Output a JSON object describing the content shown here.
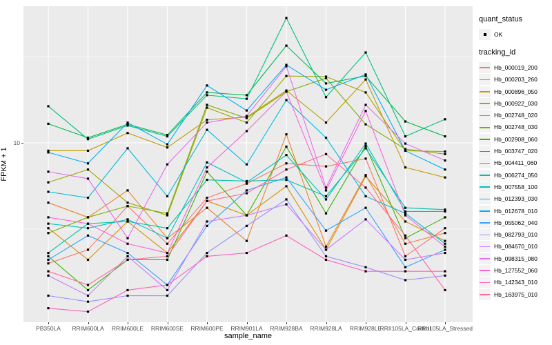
{
  "axes": {
    "y_title": "FPKM + 1",
    "x_title": "sample_name",
    "y_tick_label": "10"
  },
  "legend": {
    "quant_title": "quant_status",
    "quant_item_label": "OK",
    "tracking_title": "tracking_id"
  },
  "colors": {
    "panel_bg": "#EBEBEB",
    "grid": "#FFFFFF",
    "tick_text": "#4D4D4D",
    "point": "#000000",
    "legend_key_bg": "#F2F2F2"
  },
  "chart_data": {
    "type": "line",
    "title": "",
    "xlabel": "sample_name",
    "ylabel": "FPKM + 1",
    "yscale": "log10",
    "y_major_breaks": [
      10
    ],
    "y_minor_breaks": [
      3.16,
      31.6
    ],
    "ylim": [
      1,
      70
    ],
    "grid": true,
    "legend_position": "right",
    "point_shape": "filled-square",
    "categories": [
      "PB350LA",
      "RRIM600LA",
      "RRIM600LE",
      "RRIM600SE",
      "RRIM600PE",
      "RRIM901LA",
      "RRIM928BA",
      "RRIM928LA",
      "RRIM928LE",
      "RRII105LA_Control",
      "RRII105LA_Stressed"
    ],
    "series": [
      {
        "name": "Hb_000019_200",
        "color": "#F8766D",
        "values": [
          2.0,
          2.4,
          4.3,
          2.6,
          4.8,
          5.8,
          7.6,
          7.3,
          8.1,
          2.2,
          3.2
        ]
      },
      {
        "name": "Hb_000203_260",
        "color": "#EA8331",
        "values": [
          4.5,
          3.7,
          5.3,
          2.8,
          4.2,
          2.7,
          11.2,
          2.5,
          6.5,
          2.6,
          3.0
        ]
      },
      {
        "name": "Hb_000896_050",
        "color": "#D89000",
        "values": [
          3.2,
          2.1,
          3.5,
          2.3,
          4.6,
          3.8,
          5.6,
          2.4,
          6.4,
          3.5,
          2.7
        ]
      },
      {
        "name": "Hb_000922_030",
        "color": "#C09B00",
        "values": [
          9.0,
          9.0,
          11.4,
          9.4,
          13.6,
          14.1,
          20.1,
          13.1,
          23.3,
          7.2,
          6.3
        ]
      },
      {
        "name": "Hb_002748_020",
        "color": "#A3A500",
        "values": [
          5.9,
          7.0,
          4.5,
          3.8,
          16.0,
          13.1,
          24.4,
          24.2,
          19.6,
          9.0,
          8.9
        ]
      },
      {
        "name": "Hb_002748_030",
        "color": "#7CAE00",
        "values": [
          3.0,
          3.7,
          4.3,
          3.9,
          16.6,
          13.9,
          19.8,
          23.7,
          12.8,
          9.2,
          8.6
        ]
      },
      {
        "name": "Hb_002908_060",
        "color": "#39B600",
        "values": [
          2.2,
          1.4,
          2.1,
          2.1,
          6.8,
          3.8,
          9.5,
          3.9,
          9.6,
          2.8,
          3.7
        ]
      },
      {
        "name": "Hb_003747_020",
        "color": "#00BB4E",
        "values": [
          12.9,
          10.7,
          12.8,
          11.1,
          19.6,
          18.9,
          36.6,
          22.1,
          24.4,
          13.3,
          10.9
        ]
      },
      {
        "name": "Hb_004411_060",
        "color": "#00BF7D",
        "values": [
          16.3,
          10.5,
          12.6,
          10.9,
          18.9,
          18.0,
          52.9,
          18.4,
          33.4,
          10.9,
          13.7
        ]
      },
      {
        "name": "Hb_006274_050",
        "color": "#00C1A3",
        "values": [
          2.3,
          3.4,
          3.5,
          3.2,
          6.1,
          6.0,
          6.1,
          4.9,
          9.3,
          4.2,
          4.1
        ]
      },
      {
        "name": "Hb_007558_100",
        "color": "#00BFC4",
        "values": [
          3.4,
          3.2,
          3.6,
          2.8,
          7.7,
          5.9,
          8.5,
          4.7,
          9.9,
          4.0,
          4.0
        ]
      },
      {
        "name": "Hb_012393_030",
        "color": "#00BAE0",
        "values": [
          5.2,
          4.8,
          9.3,
          4.9,
          11.9,
          7.5,
          17.7,
          10.7,
          4.9,
          3.9,
          2.6
        ]
      },
      {
        "name": "Hb_012678_010",
        "color": "#00B0F6",
        "values": [
          8.8,
          7.6,
          13.1,
          9.8,
          21.5,
          15.4,
          28.3,
          20.3,
          24.9,
          9.0,
          7.0
        ]
      },
      {
        "name": "Hb_055062_040",
        "color": "#35A2FF",
        "values": [
          2.1,
          2.9,
          2.3,
          1.5,
          3.3,
          5.3,
          6.3,
          3.1,
          4.2,
          1.9,
          2.4
        ]
      },
      {
        "name": "Hb_082793_010",
        "color": "#9590FF",
        "values": [
          1.3,
          1.2,
          1.3,
          1.3,
          2.3,
          3.3,
          4.7,
          2.2,
          1.9,
          1.6,
          1.7
        ]
      },
      {
        "name": "Hb_084670_010",
        "color": "#C77CFF",
        "values": [
          1.7,
          1.3,
          2.2,
          1.4,
          3.5,
          3.8,
          4.4,
          2.4,
          3.6,
          2.1,
          2.3
        ]
      },
      {
        "name": "Hb_098315_080",
        "color": "#E76BF3",
        "values": [
          6.8,
          6.2,
          2.8,
          7.5,
          13.1,
          14.3,
          27.8,
          5.5,
          16.6,
          9.9,
          7.9
        ]
      },
      {
        "name": "Hb_127552_060",
        "color": "#FA62DB",
        "values": [
          3.7,
          3.4,
          2.6,
          2.3,
          7.2,
          11.7,
          19.8,
          5.3,
          15.3,
          3.8,
          2.5
        ]
      },
      {
        "name": "Hb_142343_010",
        "color": "#FF62BC",
        "values": [
          1.1,
          1.05,
          1.4,
          1.5,
          2.2,
          2.3,
          2.9,
          2.1,
          1.8,
          1.8,
          1.8
        ]
      },
      {
        "name": "Hb_163975_010",
        "color": "#FF6A98",
        "values": [
          1.8,
          1.5,
          2.1,
          2.2,
          4.6,
          5.1,
          7.0,
          8.6,
          5.5,
          2.9,
          1.4
        ]
      }
    ]
  }
}
